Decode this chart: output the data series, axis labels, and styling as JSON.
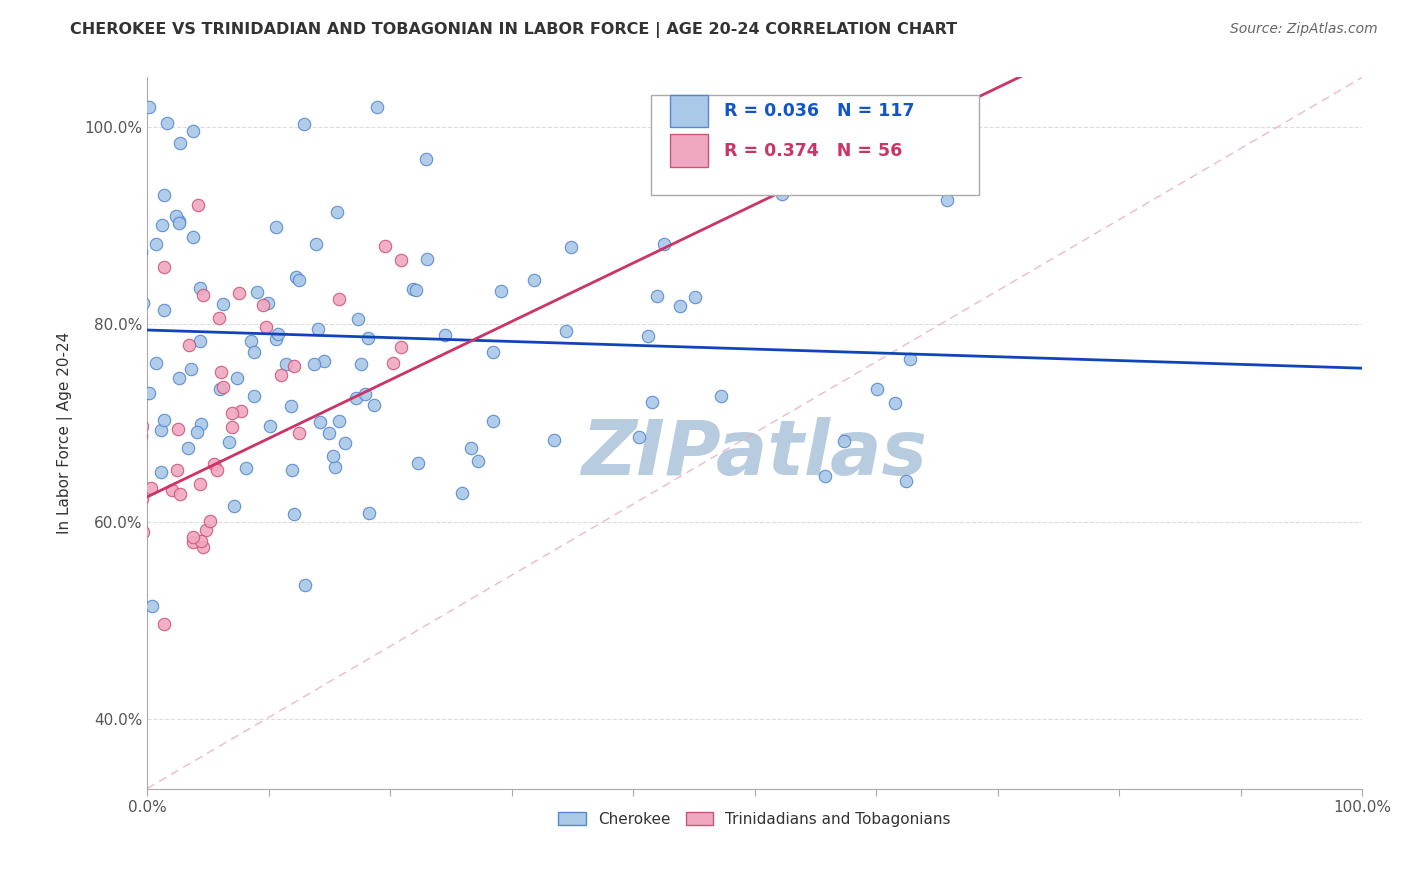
{
  "title": "CHEROKEE VS TRINIDADIAN AND TOBAGONIAN IN LABOR FORCE | AGE 20-24 CORRELATION CHART",
  "source": "Source: ZipAtlas.com",
  "ylabel": "In Labor Force | Age 20-24",
  "xlim": [
    0.0,
    1.0
  ],
  "ylim": [
    0.33,
    1.05
  ],
  "xtick_positions": [
    0.0,
    0.1,
    0.2,
    0.3,
    0.4,
    0.5,
    0.6,
    0.7,
    0.8,
    0.9,
    1.0
  ],
  "xtick_labels": [
    "0.0%",
    "",
    "",
    "",
    "",
    "",
    "",
    "",
    "",
    "",
    "100.0%"
  ],
  "ytick_positions": [
    0.4,
    0.6,
    0.8,
    1.0
  ],
  "ytick_labels": [
    "40.0%",
    "60.0%",
    "80.0%",
    "100.0%"
  ],
  "legend_labels": [
    "Cherokee",
    "Trinidadians and Tobagonians"
  ],
  "blue_color": "#aac8e8",
  "pink_color": "#f0a8c0",
  "blue_edge_color": "#5588cc",
  "pink_edge_color": "#cc5577",
  "blue_line_color": "#1144bb",
  "pink_line_color": "#cc3366",
  "ref_line_color": "#e8a0b8",
  "watermark": "ZIPatlas",
  "watermark_color": "#b8cce0",
  "blue_R": 0.036,
  "pink_R": 0.374,
  "blue_N": 117,
  "pink_N": 56,
  "legend_text_color": "#1155cc",
  "title_color": "#333333",
  "source_color": "#666666",
  "grid_color": "#dddddd"
}
